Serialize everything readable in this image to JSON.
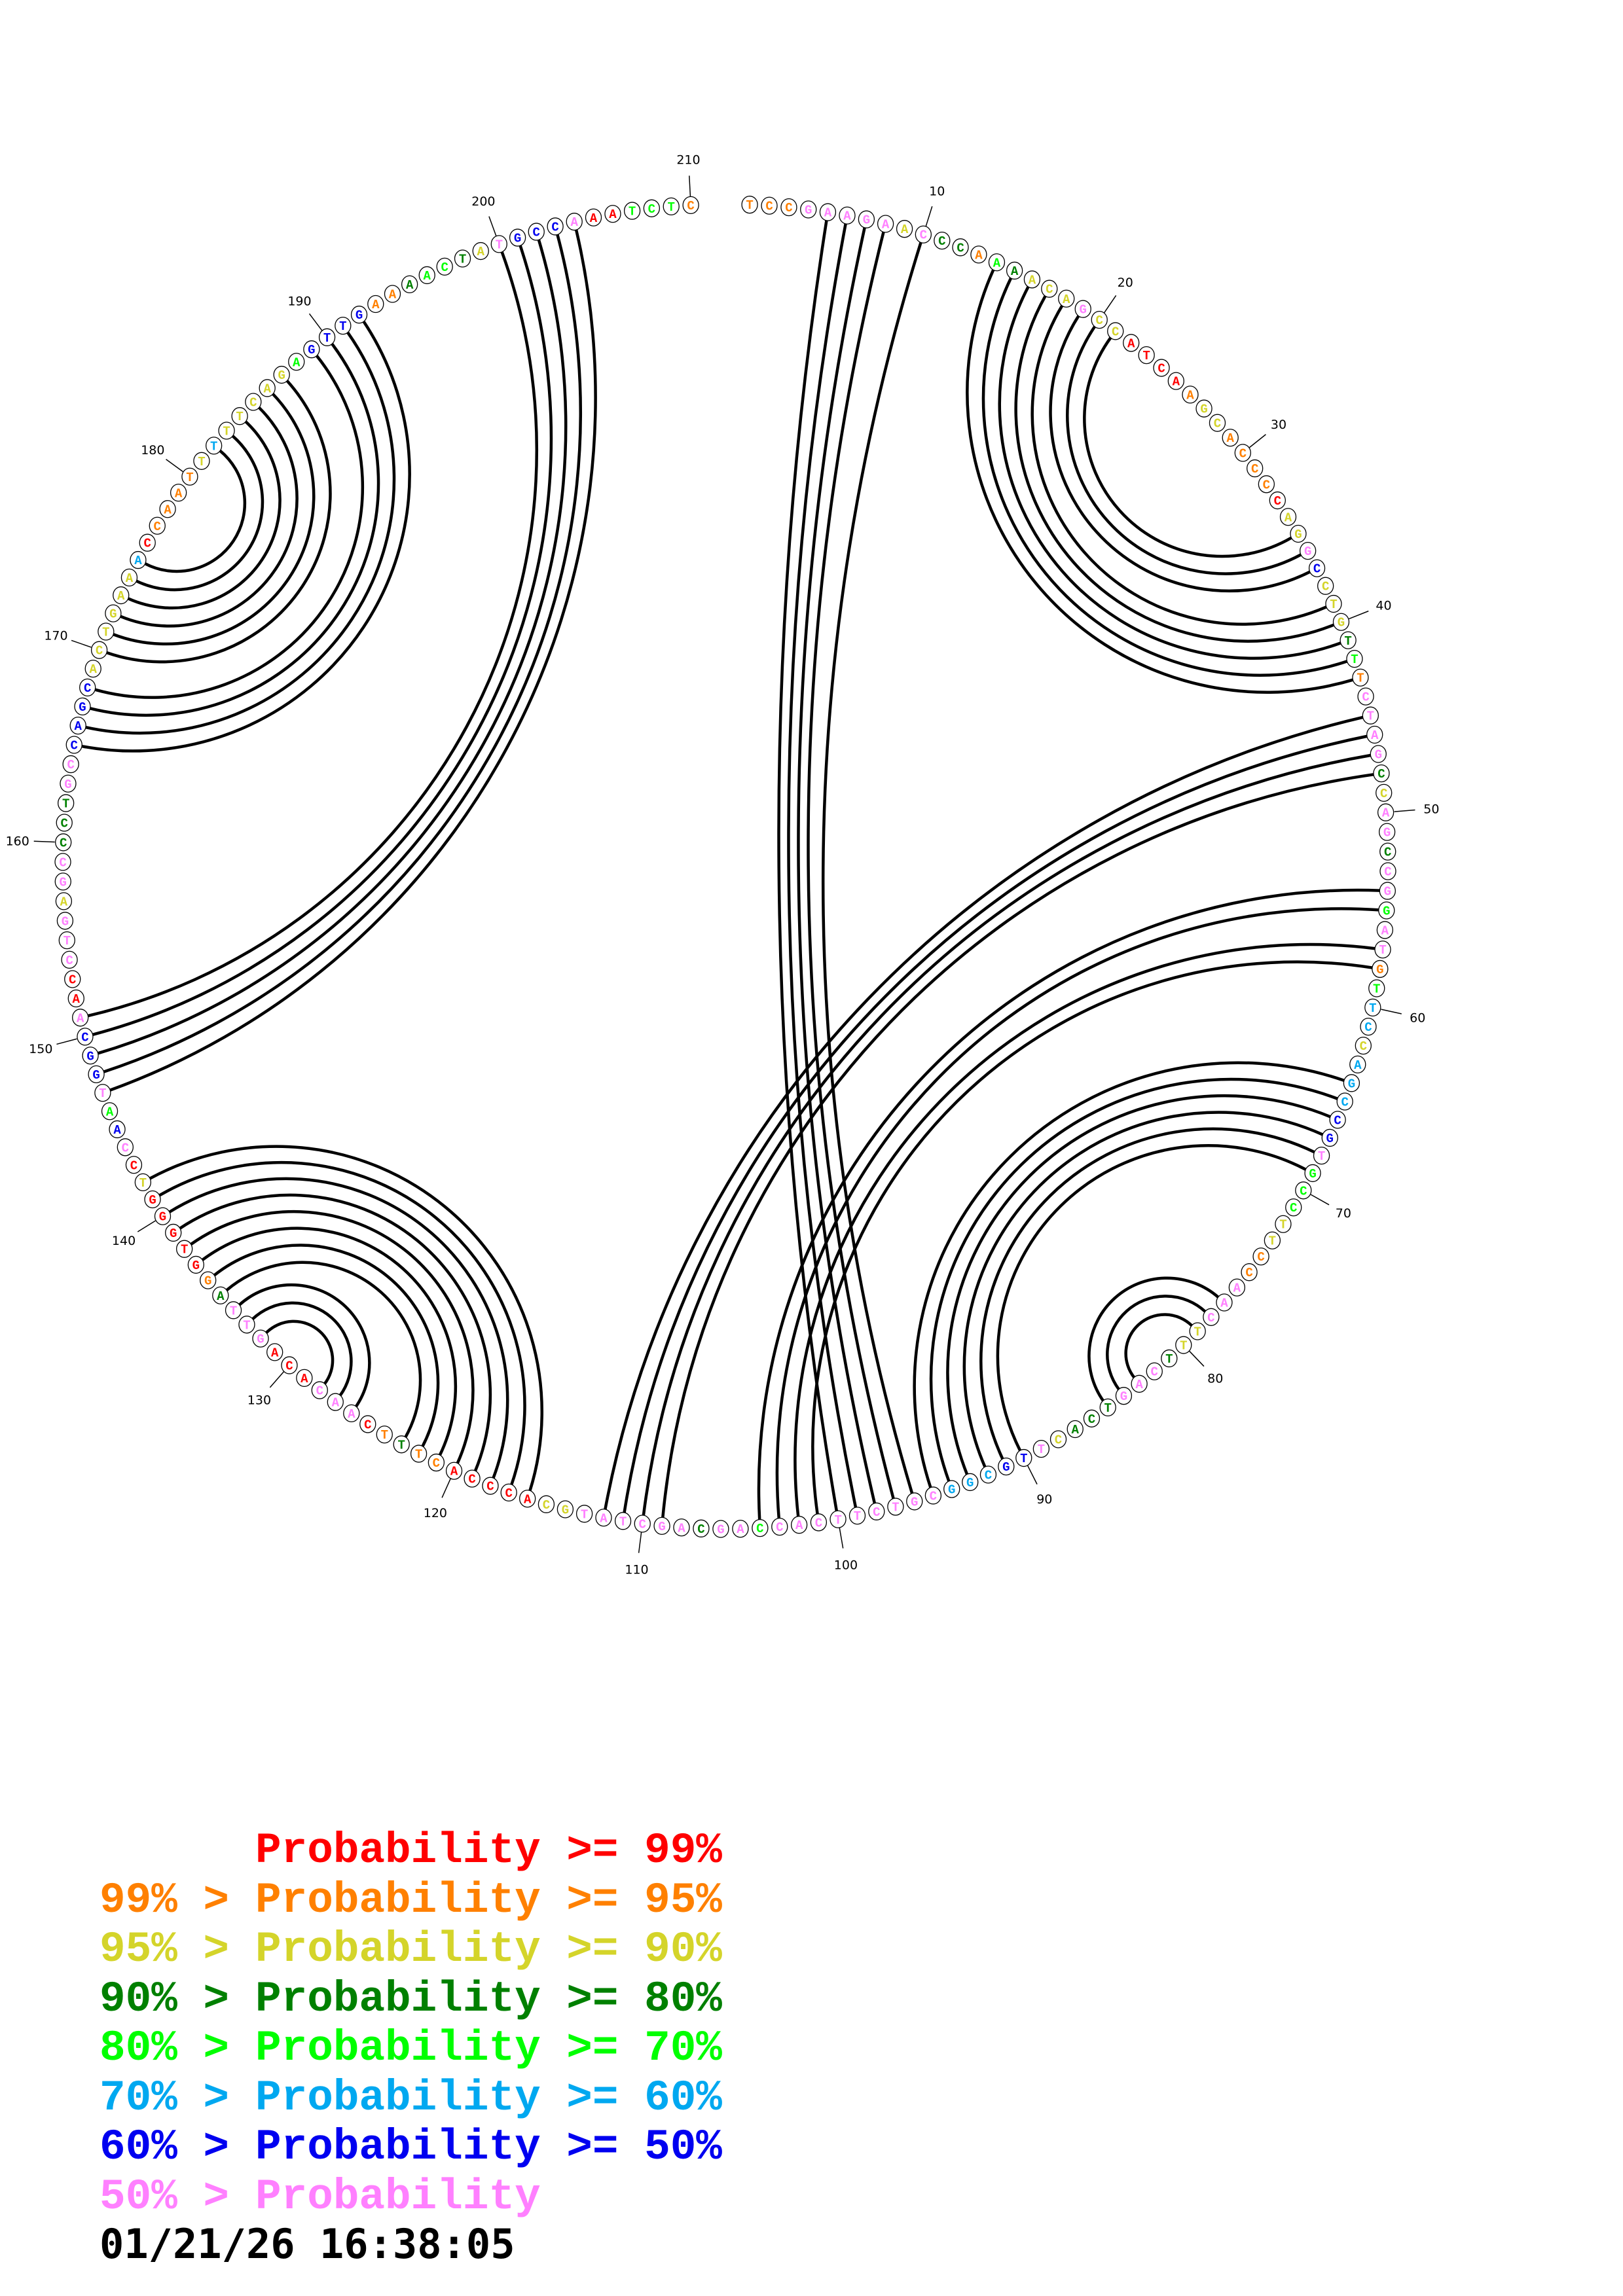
{
  "diagram": {
    "type": "rna-circle-plot",
    "sequence": "TCCGAAGAACCCAAAACAGCCATCAAGCACCCCAGGCCTGTTTCTAGCCAGCCGGATGTTCCAGCCGTGCCTTCCAACTTTCAGTCACTTGCGGCGTCTTCACCAGCAGCTATGCACCCACTTTCAACACAGTTAGGTGGGTCCAATGGCAACCTGAGCCCTGCCAGCACTGAAACCAATTTTTCAGAGTTGAAAACTATGCCAAATCTC",
    "confidence_codes": "OOOPPPPPYPDDOGDYYYPYYRRRROYYOOOORYYPBYYYDGOPPPPDYPPDPPGPPOGLLYLLLBBPGGGYYOOPPPYYDPPPDDDYPBBLLLPPPPPPPPPGPPDPPPPPPYYRRRRROODORPPPRRRPPPDORRRRRYRPBGPBBBPRRPPPYPPDDDPPBBBBYYYYYYLROOOOYLYYYYYGBBBBOODGGDYPBBBPRRGGGO",
    "pairs": [
      [
        5,
        100
      ],
      [
        6,
        99
      ],
      [
        7,
        98
      ],
      [
        8,
        97
      ],
      [
        10,
        96
      ],
      [
        14,
        43
      ],
      [
        15,
        42
      ],
      [
        16,
        41
      ],
      [
        17,
        40
      ],
      [
        18,
        39
      ],
      [
        19,
        37
      ],
      [
        20,
        36
      ],
      [
        21,
        35
      ],
      [
        45,
        112
      ],
      [
        46,
        111
      ],
      [
        47,
        110
      ],
      [
        48,
        109
      ],
      [
        54,
        104
      ],
      [
        55,
        103
      ],
      [
        57,
        102
      ],
      [
        58,
        101
      ],
      [
        64,
        95
      ],
      [
        65,
        94
      ],
      [
        66,
        93
      ],
      [
        67,
        92
      ],
      [
        68,
        91
      ],
      [
        69,
        90
      ],
      [
        77,
        85
      ],
      [
        78,
        84
      ],
      [
        79,
        83
      ],
      [
        116,
        142
      ],
      [
        117,
        141
      ],
      [
        118,
        140
      ],
      [
        119,
        139
      ],
      [
        120,
        138
      ],
      [
        121,
        137
      ],
      [
        122,
        136
      ],
      [
        123,
        135
      ],
      [
        126,
        134
      ],
      [
        127,
        133
      ],
      [
        128,
        132
      ],
      [
        147,
        204
      ],
      [
        148,
        203
      ],
      [
        149,
        202
      ],
      [
        150,
        201
      ],
      [
        151,
        200
      ],
      [
        165,
        192
      ],
      [
        166,
        191
      ],
      [
        167,
        190
      ],
      [
        168,
        189
      ],
      [
        170,
        187
      ],
      [
        171,
        186
      ],
      [
        172,
        185
      ],
      [
        173,
        184
      ],
      [
        174,
        183
      ],
      [
        175,
        182
      ]
    ],
    "position_labels": [
      10,
      20,
      30,
      40,
      50,
      60,
      70,
      80,
      90,
      100,
      110,
      120,
      130,
      140,
      150,
      160,
      170,
      180,
      190,
      200,
      210
    ],
    "confidence_colors": {
      "R": "#ff0000",
      "O": "#ff8000",
      "Y": "#d4d42a",
      "D": "#008000",
      "G": "#00ff00",
      "L": "#00a8f0",
      "B": "#0000f0",
      "P": "#ff80ff"
    },
    "pair_line_color": "#000000"
  },
  "legend": {
    "rows": [
      {
        "prefix": "",
        "text": "Probability >= 99%",
        "color": "#ff0000"
      },
      {
        "prefix": "99% > ",
        "text": "Probability >= 95%",
        "color": "#ff8000"
      },
      {
        "prefix": "95% > ",
        "text": "Probability >= 90%",
        "color": "#d4d42a"
      },
      {
        "prefix": "90% > ",
        "text": "Probability >= 80%",
        "color": "#008000"
      },
      {
        "prefix": "80% > ",
        "text": "Probability >= 70%",
        "color": "#00ff00"
      },
      {
        "prefix": "70% > ",
        "text": "Probability >= 60%",
        "color": "#00a8f0"
      },
      {
        "prefix": "60% > ",
        "text": "Probability >= 50%",
        "color": "#0000f0"
      },
      {
        "prefix": "50% > ",
        "text": "Probability",
        "color": "#ff80ff"
      }
    ]
  },
  "timestamp": "01/21/26 16:38:05"
}
